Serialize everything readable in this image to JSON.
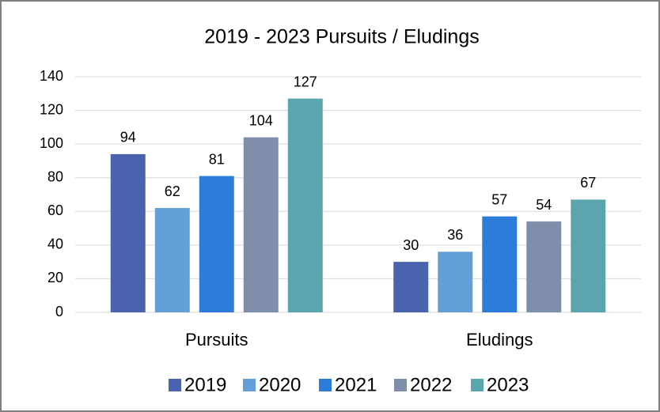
{
  "chart_data": {
    "type": "bar",
    "title": "2019 - 2023 Pursuits / Eludings",
    "categories": [
      "Pursuits",
      "Eludings"
    ],
    "series": [
      {
        "name": "2019",
        "color": "#4a63ae",
        "values": [
          94,
          30
        ]
      },
      {
        "name": "2020",
        "color": "#62a0d7",
        "values": [
          62,
          36
        ]
      },
      {
        "name": "2021",
        "color": "#2b7dd9",
        "values": [
          81,
          57
        ]
      },
      {
        "name": "2022",
        "color": "#7f8eaa",
        "values": [
          104,
          54
        ]
      },
      {
        "name": "2023",
        "color": "#5ba5ae",
        "values": [
          127,
          67
        ]
      }
    ],
    "ylim": [
      0,
      140
    ],
    "yticks": [
      0,
      20,
      40,
      60,
      80,
      100,
      120,
      140
    ],
    "grid": true,
    "legend": "bottom"
  }
}
